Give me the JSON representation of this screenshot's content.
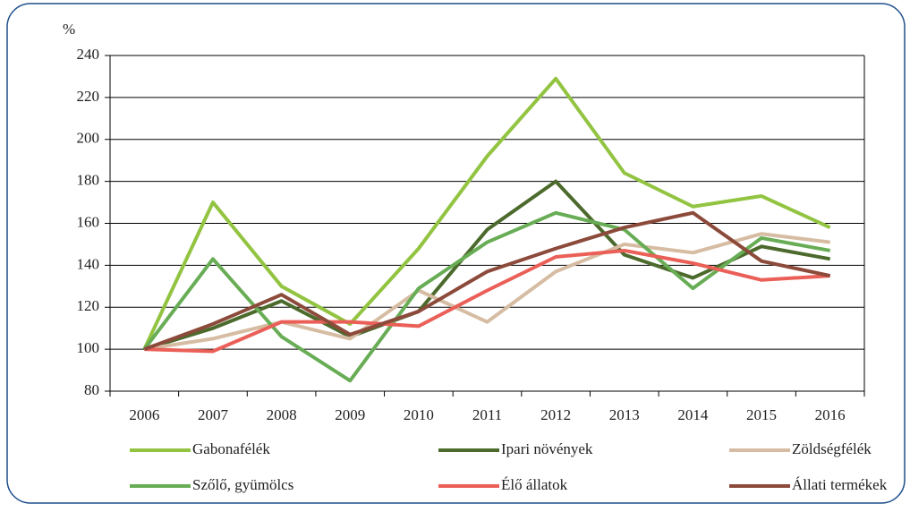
{
  "chart_data": {
    "type": "line",
    "y_label": "%",
    "categories": [
      "2006",
      "2007",
      "2008",
      "2009",
      "2010",
      "2011",
      "2012",
      "2013",
      "2014",
      "2015",
      "2016"
    ],
    "series": [
      {
        "name": "Gabonafélék",
        "color": "#92c441",
        "values": [
          100,
          170,
          130,
          112,
          148,
          192,
          229,
          184,
          168,
          173,
          158
        ]
      },
      {
        "name": "Ipari növények",
        "color": "#4b6a2c",
        "values": [
          100,
          110,
          123,
          106,
          118,
          157,
          180,
          145,
          134,
          149,
          143
        ]
      },
      {
        "name": "Zöldségfélék",
        "color": "#d6bca2",
        "values": [
          100,
          105,
          113,
          105,
          128,
          113,
          137,
          150,
          146,
          155,
          151
        ]
      },
      {
        "name": "Szőlő, gyümölcs",
        "color": "#68ad55",
        "values": [
          100,
          143,
          106,
          85,
          129,
          151,
          165,
          157,
          129,
          153,
          147
        ]
      },
      {
        "name": "Élő állatok",
        "color": "#ea5f57",
        "values": [
          100,
          99,
          113,
          113,
          111,
          128,
          144,
          147,
          141,
          133,
          135
        ]
      },
      {
        "name": "Állati termékek",
        "color": "#8c4a3b",
        "values": [
          100,
          112,
          126,
          107,
          118,
          137,
          148,
          158,
          165,
          142,
          135
        ]
      }
    ],
    "ylim": [
      80,
      240
    ],
    "yticks": [
      80,
      100,
      120,
      140,
      160,
      180,
      200,
      220,
      240
    ],
    "grid": true,
    "legend": "bottom"
  }
}
